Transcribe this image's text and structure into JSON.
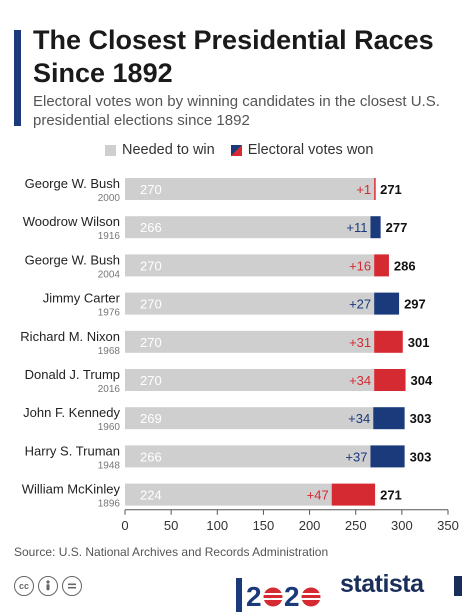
{
  "title": "The Closest Presidential Races Since 1892",
  "subtitle": "Electoral votes won by winning candidates in the closest U.S. presidential elections since 1892",
  "legend": {
    "needed": "Needed to win",
    "won": "Electoral votes won"
  },
  "source": "Source: U.S. National Archives and Records Administration",
  "brand": "statista",
  "colors": {
    "needed": "#cfcfcf",
    "republican": "#d62a32",
    "democrat": "#1a3a7c",
    "title_accent": "#1a3a7c"
  },
  "icons": [
    "cc-icon",
    "by-icon",
    "nd-icon",
    "election-2020-logo",
    "statista-logo"
  ],
  "chart_data": {
    "type": "bar",
    "orientation": "horizontal",
    "stacked": true,
    "categories": [
      {
        "name": "George W. Bush",
        "year": "2000"
      },
      {
        "name": "Woodrow Wilson",
        "year": "1916"
      },
      {
        "name": "George W. Bush",
        "year": "2004"
      },
      {
        "name": "Jimmy Carter",
        "year": "1976"
      },
      {
        "name": "Richard M. Nixon",
        "year": "1968"
      },
      {
        "name": "Donald J. Trump",
        "year": "2016"
      },
      {
        "name": "John F. Kennedy",
        "year": "1960"
      },
      {
        "name": "Harry S. Truman",
        "year": "1948"
      },
      {
        "name": "William McKinley",
        "year": "1896"
      }
    ],
    "series": [
      {
        "name": "Needed to win",
        "values": [
          270,
          266,
          270,
          270,
          270,
          270,
          269,
          266,
          224
        ],
        "labels": [
          "270",
          "266",
          "270",
          "270",
          "270",
          "270",
          "269",
          "266",
          "224"
        ]
      },
      {
        "name": "Electoral votes won",
        "values": [
          1,
          11,
          16,
          27,
          31,
          34,
          34,
          37,
          47
        ],
        "labels": [
          "+1",
          "+11",
          "+16",
          "+27",
          "+31",
          "+34",
          "+34",
          "+37",
          "+47"
        ],
        "party": [
          "R",
          "D",
          "R",
          "D",
          "R",
          "R",
          "D",
          "D",
          "R"
        ]
      }
    ],
    "totals": [
      "271",
      "277",
      "286",
      "297",
      "301",
      "304",
      "303",
      "303",
      "271"
    ],
    "xticks": [
      "0",
      "50",
      "100",
      "150",
      "200",
      "250",
      "300",
      "350"
    ],
    "xlim": [
      0,
      350
    ]
  }
}
